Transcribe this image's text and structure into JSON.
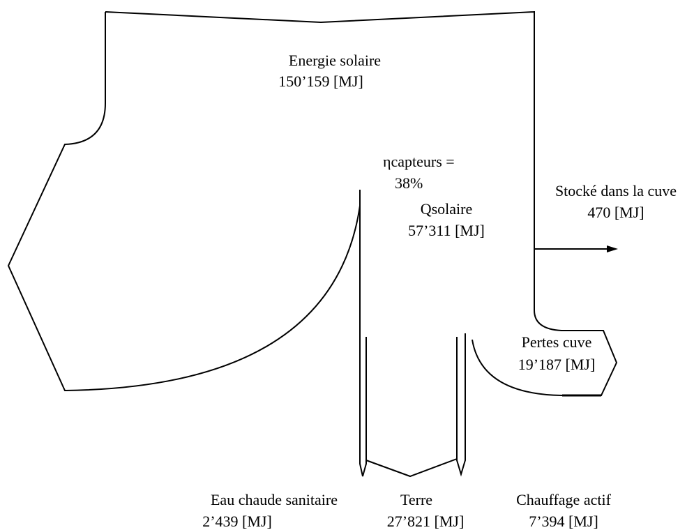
{
  "colors": {
    "stroke": "#000000",
    "background": "#ffffff"
  },
  "labels": {
    "solar_energy": {
      "name": "Energie solaire",
      "value": "150’159 [MJ]"
    },
    "collector_efficiency": {
      "name": "ηcapteurs =",
      "value": "38%"
    },
    "q_solar": {
      "name": "Qsolaire",
      "value": "57’311 [MJ]"
    },
    "stored_in_tank": {
      "name": "Stocké dans la cuve",
      "value": "470 [MJ]"
    },
    "tank_losses": {
      "name": "Pertes cuve",
      "value": "19’187 [MJ]"
    },
    "domestic_hot_water": {
      "name": "Eau chaude sanitaire",
      "value": "2’439 [MJ]"
    },
    "ground": {
      "name": "Terre",
      "value": "27’821 [MJ]"
    },
    "active_heating": {
      "name": "Chauffage actif",
      "value": "7’394 [MJ]"
    }
  }
}
